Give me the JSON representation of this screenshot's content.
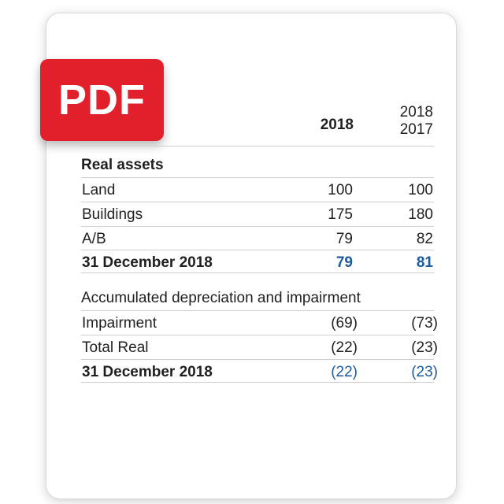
{
  "badge": {
    "label": "PDF"
  },
  "header": {
    "col1": "2018",
    "col2_line1": "2018",
    "col2_line2": "2017"
  },
  "section1": {
    "title": "Real assets",
    "rows": [
      {
        "label": "Land",
        "v1": "100",
        "v2": "100"
      },
      {
        "label": "Buildings",
        "v1": "175",
        "v2": "180"
      },
      {
        "label": "A/B",
        "v1": "79",
        "v2": "82"
      },
      {
        "label": "31 December 2018",
        "v1": "79",
        "v2": "81"
      }
    ]
  },
  "section2": {
    "title": "Accumulated depreciation and impairment",
    "rows": [
      {
        "label": "Impairment",
        "v1": "(69)",
        "v2": "(73)"
      },
      {
        "label": "Total Real",
        "v1": "(22)",
        "v2": "(23)"
      },
      {
        "label": "31 December 2018",
        "v1": "(22)",
        "v2": "(23)"
      }
    ]
  },
  "colors": {
    "badge": "#e2202c",
    "total_values": "#1d5a9e"
  }
}
